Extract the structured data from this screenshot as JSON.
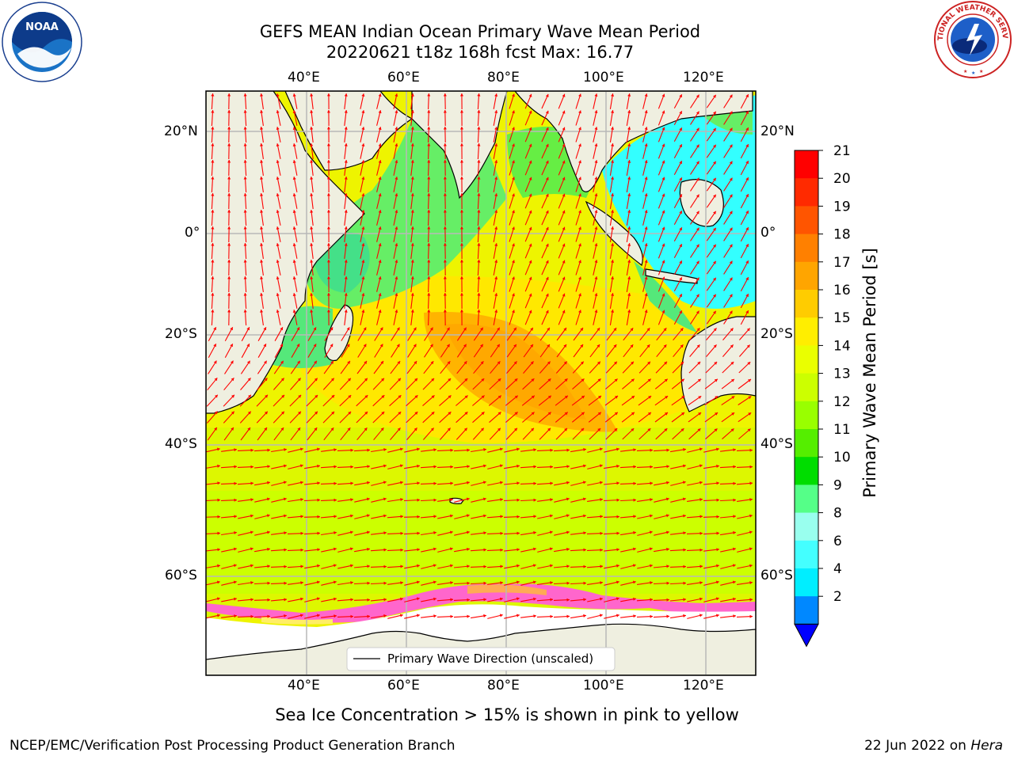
{
  "title": {
    "line1": "GEFS MEAN Indian Ocean Primary Wave Mean Period",
    "line2": "20220621 t18z 168h fcst   Max: 16.77"
  },
  "map": {
    "lon_labels": [
      "40°E",
      "60°E",
      "80°E",
      "100°E",
      "120°E"
    ],
    "lat_labels": [
      "20°N",
      "0°",
      "20°S",
      "40°S",
      "60°S"
    ],
    "legend_label": "Primary Wave Direction (unscaled)",
    "arrow_color": "#ff0000",
    "land_color": "#efefe0",
    "ice_color": "#ff66cc"
  },
  "colorbar": {
    "label": "Primary Wave Mean Period [s]",
    "ticks": [
      "21",
      "20",
      "19",
      "18",
      "17",
      "16",
      "15",
      "14",
      "13",
      "12",
      "11",
      "10",
      "9",
      "8",
      "6",
      "4",
      "2"
    ],
    "colors": [
      "#ff0000",
      "#ff2a00",
      "#ff5500",
      "#ff8000",
      "#ffa500",
      "#ffcc00",
      "#ffee00",
      "#eaff00",
      "#ccff00",
      "#99ff00",
      "#55ee00",
      "#00dd00",
      "#55ff88",
      "#99ffee",
      "#44ffff",
      "#00eeff",
      "#0088ff",
      "#0000ff"
    ]
  },
  "note": "Sea Ice Concentration > 15% is shown in pink to yellow",
  "footer": {
    "left": "NCEP/EMC/Verification Post Processing Product Generation Branch",
    "right_prefix": "22 Jun 2022 on ",
    "right_host": "Hera"
  },
  "logos": {
    "noaa_text": "NOAA",
    "nws_text": "NATIONAL WEATHER SERVICE"
  }
}
